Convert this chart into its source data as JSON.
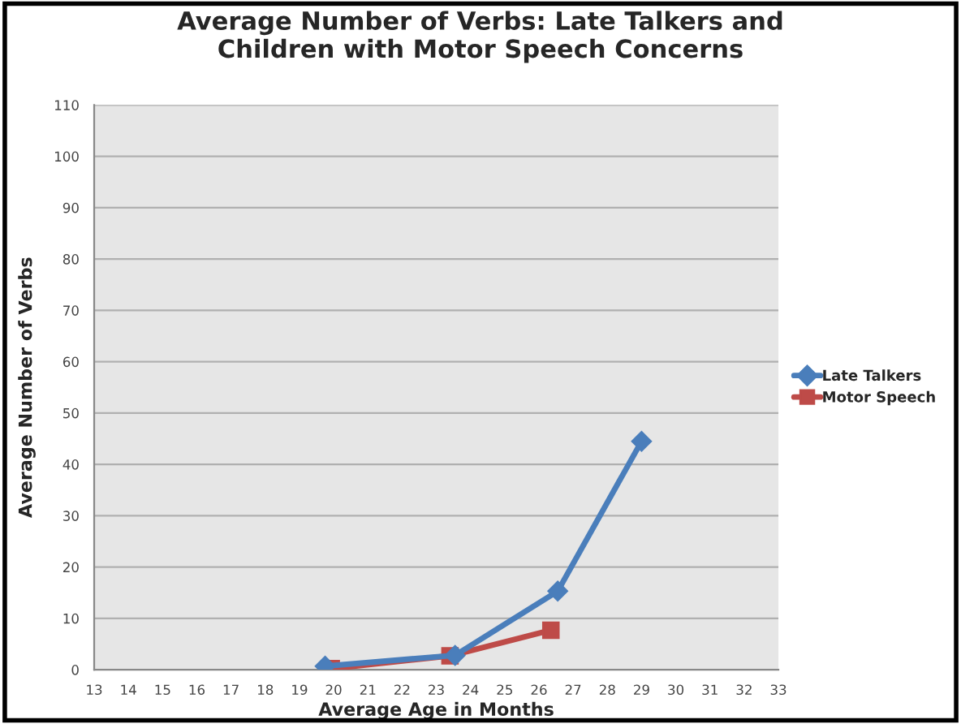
{
  "chart_data": {
    "type": "line",
    "title": "Average Number of Verbs: Late Talkers and\nChildren with Motor Speech Concerns",
    "xlabel": "Average Age in Months",
    "ylabel": "Average Number of Verbs",
    "xlim": [
      13,
      33
    ],
    "xticks": [
      13,
      14,
      15,
      16,
      17,
      18,
      19,
      20,
      21,
      22,
      23,
      24,
      25,
      26,
      27,
      28,
      29,
      30,
      31,
      32,
      33
    ],
    "ylim": [
      0,
      110
    ],
    "yticks": [
      0,
      10,
      20,
      30,
      40,
      50,
      60,
      70,
      80,
      90,
      100,
      110
    ],
    "grid": "y",
    "legend": "right",
    "series": [
      {
        "name": "Late Talkers",
        "color": "#4a7ebb",
        "marker": "diamond",
        "x": [
          19.75,
          23.55,
          26.55,
          29.0
        ],
        "values": [
          0.7,
          2.8,
          15.3,
          44.5
        ]
      },
      {
        "name": "Motor Speech",
        "color": "#be4b48",
        "marker": "square",
        "x": [
          19.93,
          23.4,
          26.35
        ],
        "values": [
          0.2,
          2.7,
          7.7
        ]
      }
    ]
  }
}
